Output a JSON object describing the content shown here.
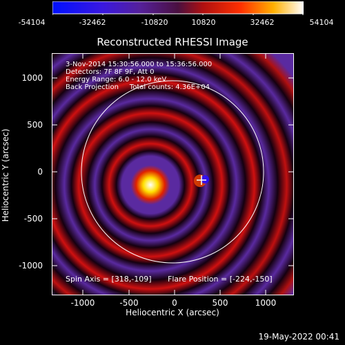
{
  "colorbar": {
    "ticks": [
      "-54104",
      "-32462",
      "-10820",
      "10820",
      "32462",
      "54104"
    ]
  },
  "title": "Reconstructed RHESSI Image",
  "info": {
    "line1": "3-Nov-2014 15:30:56.000 to 15:36:56.000",
    "line2": "Detectors: 7F 8F 9F, Att 0",
    "line3": "Energy Range: 6.0 - 12.0 keV",
    "line4": "Back Projection     Total counts: 4.36E+04"
  },
  "footer": {
    "spin_axis": "Spin Axis = [318,-109]",
    "flare_position": "Flare Position = [-224,-150]"
  },
  "axes": {
    "xlabel": "Heliocentric X (arcsec)",
    "ylabel": "Heliocentric Y (arcsec)",
    "xticks": [
      "-1000",
      "-500",
      "0",
      "500",
      "1000"
    ],
    "yticks": [
      "1000",
      "500",
      "0",
      "-500",
      "-1000"
    ]
  },
  "generated_date": "19-May-2022 00:41",
  "colors": {
    "negative": "#2a0cff",
    "mid": "#5a2aa0",
    "positive_low": "#e01010",
    "positive_high": "#ffffff"
  }
}
